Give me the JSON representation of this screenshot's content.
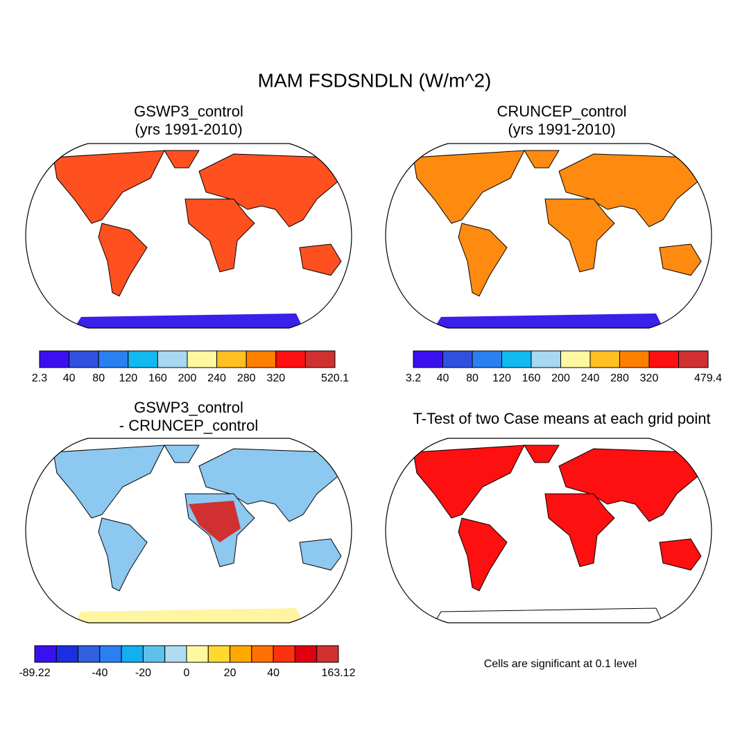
{
  "title": "MAM FSDSNDLN (W/m^2)",
  "panels": [
    {
      "title": [
        "GSWP3_control",
        "(yrs 1991-2010)"
      ],
      "colorbar": {
        "colors": [
          "#3a10f0",
          "#3050e0",
          "#2a80f0",
          "#12b8f0",
          "#a8d8f0",
          "#fff8a0",
          "#ffc020",
          "#ff8000",
          "#ff1010",
          "#d03030"
        ],
        "labels": [
          2.3,
          40,
          80,
          120,
          160,
          200,
          240,
          280,
          320,
          null,
          520.1
        ]
      }
    },
    {
      "title": [
        "CRUNCEP_control",
        "(yrs 1991-2010)"
      ],
      "colorbar": {
        "colors": [
          "#3a10f0",
          "#3050e0",
          "#2a80f0",
          "#12b8f0",
          "#a8d8f0",
          "#fff8a0",
          "#ffc020",
          "#ff8000",
          "#ff1010",
          "#d03030"
        ],
        "labels": [
          3.2,
          40,
          80,
          120,
          160,
          200,
          240,
          280,
          320,
          null,
          479.4
        ]
      }
    },
    {
      "title": [
        "GSWP3_control",
        "- CRUNCEP_control"
      ],
      "colorbar": {
        "colors": [
          "#3a10f0",
          "#1a30e0",
          "#3060e0",
          "#2a80f0",
          "#12b0f0",
          "#60c0ec",
          "#b0dcf0",
          "#fff8a0",
          "#ffd830",
          "#ffa800",
          "#ff7000",
          "#ff3010",
          "#e00010",
          "#d03030"
        ],
        "labels": [
          -89.22,
          null,
          null,
          -40,
          null,
          -20,
          null,
          0,
          null,
          20,
          null,
          40,
          null,
          null,
          163.12
        ]
      }
    },
    {
      "title": [
        "T-Test of two Case means at each grid point"
      ],
      "note": "Cells are significant at 0.1 level"
    }
  ]
}
